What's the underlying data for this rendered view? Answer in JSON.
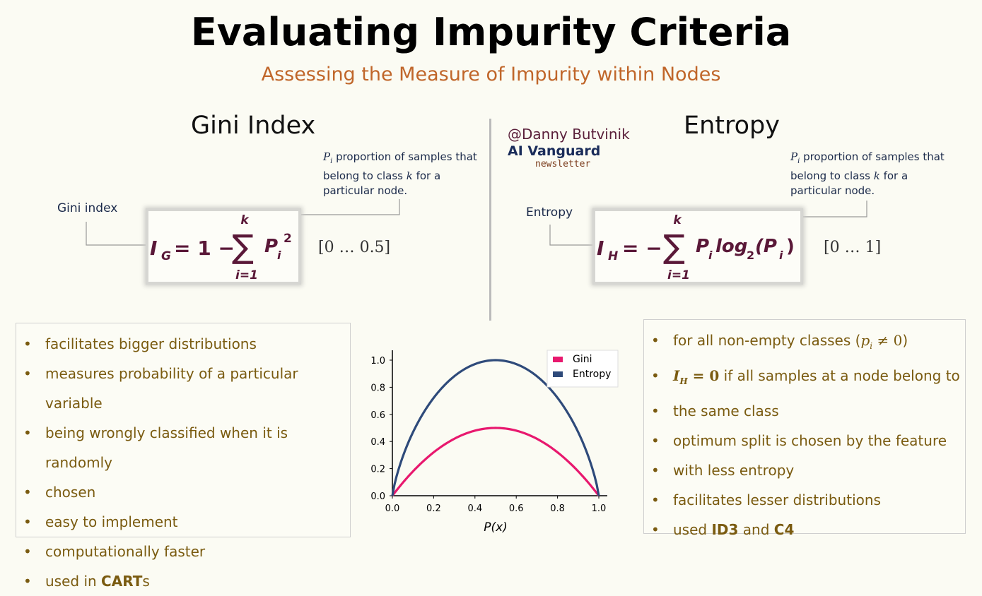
{
  "header": {
    "title": "Evaluating Impurity Criteria",
    "subtitle": "Assessing the Measure of Impurity within Nodes"
  },
  "credit": {
    "author": "@Danny Butvinik",
    "brand": "AI Vanguard",
    "tag": "newsletter"
  },
  "gini": {
    "heading": "Gini Index",
    "label": "Gini index",
    "note_var": "P",
    "note_sub": "i",
    "note_line1": " proportion of samples that",
    "note_line2a": "belong to class ",
    "note_k": "k",
    "note_line2b": " for a",
    "note_line3": "particular node.",
    "formula": {
      "lhs": "I",
      "lhs_sub": "G",
      "eq": "= 1 −",
      "sum_top": "k",
      "sum_bottom": "i=1",
      "term": "P",
      "term_sub": "i",
      "term_sup": "2"
    },
    "range": "[0 … 0.5]",
    "bullets": [
      {
        "text": "facilitates bigger distributions"
      },
      {
        "text": "measures probability of a particular variable"
      },
      {
        "text": "being wrongly classified when it is randomly"
      },
      {
        "text": "chosen"
      },
      {
        "text": "easy to implement"
      },
      {
        "text": "computationally faster"
      },
      {
        "pre": "used in ",
        "bold": "CART",
        "post": "s"
      }
    ]
  },
  "entropy": {
    "heading": "Entropy",
    "label": "Entropy",
    "note_var": "P",
    "note_sub": "i",
    "note_line1": " proportion of samples that",
    "note_line2a": "belong to class ",
    "note_k": "k",
    "note_line2b": " for a",
    "note_line3": "particular node.",
    "formula": {
      "lhs": "I",
      "lhs_sub": "H",
      "eq": "= −",
      "sum_top": "k",
      "sum_bottom": "i=1",
      "term": "P",
      "term_sub": "i",
      "log": "log",
      "log_sub": "2",
      "arg_open": "(P",
      "arg_sub": "i",
      "arg_close": ")"
    },
    "range": "[0 … 1]",
    "bullets": {
      "b1_pre": "for all non-empty classes (",
      "b1_math": "p",
      "b1_sub": "i",
      "b1_math2": " ≠ 0",
      "b1_post": ")",
      "b2_math": "I",
      "b2_sub": "H",
      "b2_math2": " = 0",
      "b2_post": " if all samples at a node belong to",
      "b3": "the same class",
      "b4": "optimum split is chosen by the feature",
      "b5": "with less entropy",
      "b6": "facilitates lesser distributions",
      "b7_pre": "used ",
      "b7_bold1": "ID3",
      "b7_mid": " and ",
      "b7_bold2": "C4"
    }
  },
  "chart_data": {
    "type": "line",
    "xlabel": "P(x)",
    "ylabel": "",
    "xlim": [
      0,
      1
    ],
    "ylim": [
      0,
      1
    ],
    "xticks": [
      "0.0",
      "0.2",
      "0.4",
      "0.6",
      "0.8",
      "1.0"
    ],
    "yticks": [
      "0.0",
      "0.2",
      "0.4",
      "0.6",
      "0.8",
      "1.0"
    ],
    "legend_position": "top-right",
    "series": [
      {
        "name": "Gini",
        "color": "#e8186e",
        "x": [
          0,
          0.1,
          0.2,
          0.3,
          0.4,
          0.5,
          0.6,
          0.7,
          0.8,
          0.9,
          1.0
        ],
        "y": [
          0,
          0.18,
          0.32,
          0.42,
          0.48,
          0.5,
          0.48,
          0.42,
          0.32,
          0.18,
          0
        ]
      },
      {
        "name": "Entropy",
        "color": "#2e4a7a",
        "x": [
          0,
          0.1,
          0.2,
          0.3,
          0.4,
          0.5,
          0.6,
          0.7,
          0.8,
          0.9,
          1.0
        ],
        "y": [
          0,
          0.469,
          0.722,
          0.881,
          0.971,
          1.0,
          0.971,
          0.881,
          0.722,
          0.469,
          0
        ]
      }
    ]
  }
}
